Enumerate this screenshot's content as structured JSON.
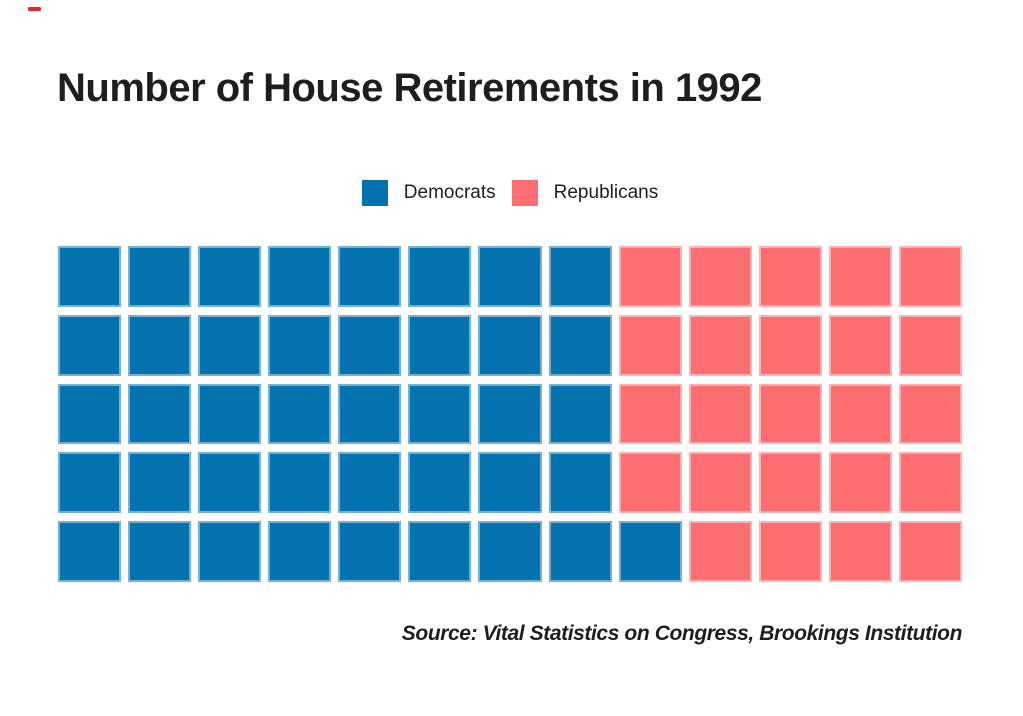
{
  "page": {
    "background": "#ffffff"
  },
  "corner_mark": {
    "color": "#e2272e"
  },
  "title": {
    "text": "Number of House Retirements in 1992",
    "color": "#1e1e1e"
  },
  "legend": {
    "items": [
      {
        "label": "Democrats",
        "color": "#0572b0"
      },
      {
        "label": "Republicans",
        "color": "#fd6e73"
      }
    ]
  },
  "source": {
    "text": "Source: Vital Statistics on Congress, Brookings Institution"
  },
  "chart_data": {
    "type": "waffle",
    "title": "Number of House Retirements in 1992",
    "unit": "1 square = 1 House retirement",
    "series": [
      {
        "name": "Democrats",
        "value": 41,
        "color": "#0572b0"
      },
      {
        "name": "Republicans",
        "value": 24,
        "color": "#fd6e73"
      }
    ],
    "total": 65,
    "grid": {
      "rows": 5,
      "columns": 13,
      "fill_order": "column-major, Democrats first then Republicans"
    },
    "rows_composition": [
      {
        "democrats": 8,
        "republicans": 5
      },
      {
        "democrats": 8,
        "republicans": 5
      },
      {
        "democrats": 8,
        "republicans": 5
      },
      {
        "democrats": 8,
        "republicans": 5
      },
      {
        "democrats": 9,
        "republicans": 4
      }
    ],
    "legend_position": "top-center",
    "annotations": [
      "Source: Vital Statistics on Congress, Brookings Institution"
    ]
  }
}
